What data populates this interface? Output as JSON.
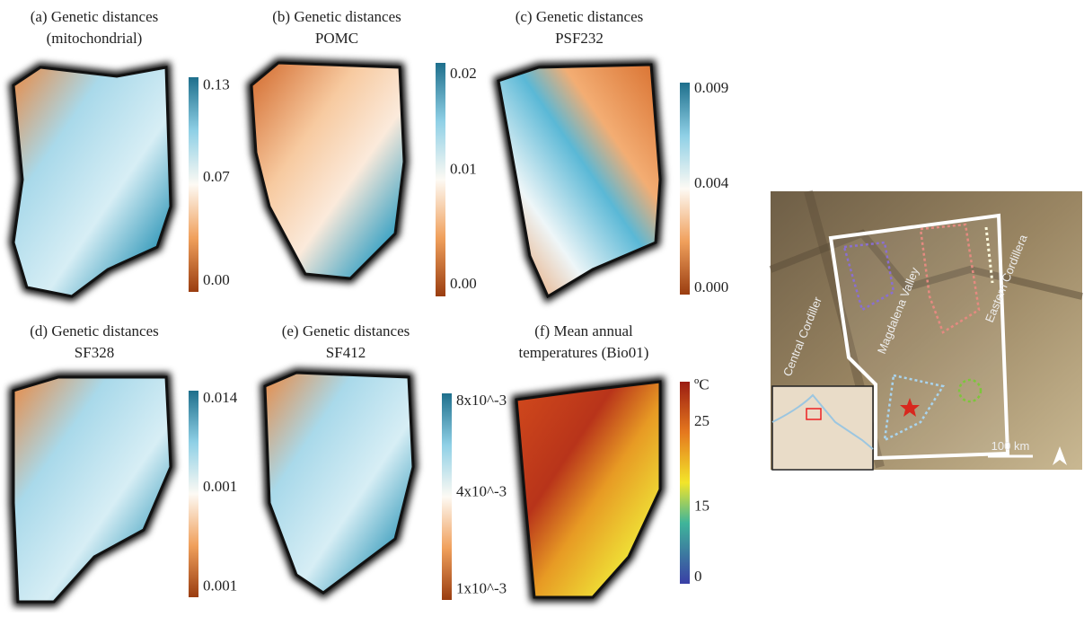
{
  "panels": [
    {
      "title": [
        "(a) Genetic distances",
        "(mitochondrial)"
      ],
      "colorbar": [
        "0.13",
        "0.07",
        "0.00"
      ]
    },
    {
      "title": [
        "(b) Genetic distances",
        "POMC"
      ],
      "colorbar": [
        "0.02",
        "0.01",
        "0.00"
      ]
    },
    {
      "title": [
        "(c) Genetic distances",
        "PSF232"
      ],
      "colorbar": [
        "0.009",
        "0.004",
        "0.000"
      ]
    },
    {
      "title": [
        "(d) Genetic distances",
        "SF328"
      ],
      "colorbar": [
        "0.014",
        "0.001",
        "0.001"
      ]
    },
    {
      "title": [
        "(e) Genetic distances",
        "SF412"
      ],
      "colorbar": [
        "8x10^-3",
        "4x10^-3",
        "1x10^-3"
      ]
    },
    {
      "title": [
        "(f) Mean annual",
        "temperatures (Bio01)"
      ],
      "colorbar": [
        "ºC",
        "25",
        "15",
        "0"
      ]
    }
  ],
  "map": {
    "labels": [
      "Central Cordiller",
      "Magdalena Valley",
      "Eastern Cordillera"
    ],
    "scale": "100 km"
  }
}
